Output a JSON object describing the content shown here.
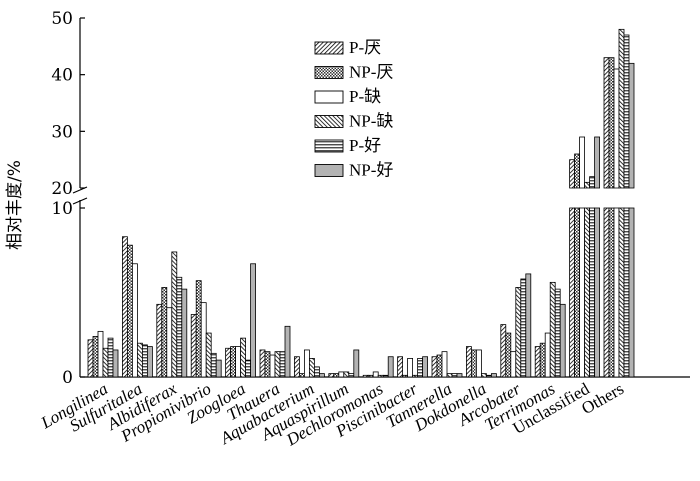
{
  "chart_data": {
    "type": "bar",
    "ylabel": "相对丰度/%",
    "y_axis": {
      "broken": true,
      "lower_range": [
        0,
        10
      ],
      "upper_range": [
        20,
        50
      ],
      "ticks": [
        "0",
        "10",
        "20",
        "30",
        "40",
        "50"
      ]
    },
    "categories": [
      "Longilinea",
      "Sulfuritalea",
      "Albidiferax",
      "Propionivibrio",
      "Zoogloea",
      "Thauera",
      "Aquabacterium",
      "Aquaspirillum",
      "Dechloromonas",
      "Piscinibacter",
      "Tannerella",
      "Dokdonella",
      "Arcobater",
      "Terrimonas",
      "Unclassified",
      "Others"
    ],
    "italic_categories": [
      "Longilinea",
      "Sulfuritalea",
      "Albidiferax",
      "Propionivibrio",
      "Zoogloea",
      "Thauera",
      "Aquabacterium",
      "Aquaspirillum",
      "Dechloromonas",
      "Piscinibacter",
      "Tannerella",
      "Dokdonella",
      "Arcobater",
      "Terrimonas"
    ],
    "series": [
      {
        "name": "P-厌",
        "values": [
          2.2,
          8.3,
          4.3,
          3.7,
          1.7,
          1.6,
          1.2,
          0.2,
          0.1,
          1.2,
          1.2,
          1.8,
          3.1,
          1.8,
          25.0,
          43.0
        ]
      },
      {
        "name": "NP-厌",
        "values": [
          2.4,
          7.8,
          5.3,
          5.7,
          1.8,
          1.5,
          0.2,
          0.2,
          0.1,
          0.1,
          1.3,
          1.6,
          2.6,
          2.0,
          26.0,
          43.0
        ]
      },
      {
        "name": "P-缺",
        "values": [
          2.7,
          6.7,
          4.1,
          4.4,
          1.8,
          1.3,
          1.6,
          0.3,
          0.3,
          1.1,
          1.5,
          1.6,
          1.5,
          2.6,
          29.0,
          41.0
        ]
      },
      {
        "name": "NP-缺",
        "values": [
          1.7,
          2.0,
          7.4,
          2.6,
          2.3,
          1.5,
          1.1,
          0.3,
          0.1,
          0.1,
          0.2,
          0.2,
          5.3,
          5.6,
          21.0,
          48.0
        ]
      },
      {
        "name": "P-好",
        "values": [
          2.3,
          1.9,
          5.9,
          1.4,
          1.0,
          1.5,
          0.6,
          0.2,
          0.1,
          1.1,
          0.2,
          0.1,
          5.8,
          5.2,
          22.0,
          47.0
        ]
      },
      {
        "name": "NP-好",
        "values": [
          1.6,
          1.8,
          5.2,
          1.0,
          6.7,
          3.0,
          0.2,
          1.6,
          1.2,
          1.2,
          0.2,
          0.2,
          6.1,
          4.3,
          29.0,
          42.0
        ]
      }
    ],
    "legend_position": "top-right",
    "colors": {
      "fill": "#ffffff",
      "stroke": "#000000",
      "solid_gray": "#b3b3b3"
    }
  }
}
